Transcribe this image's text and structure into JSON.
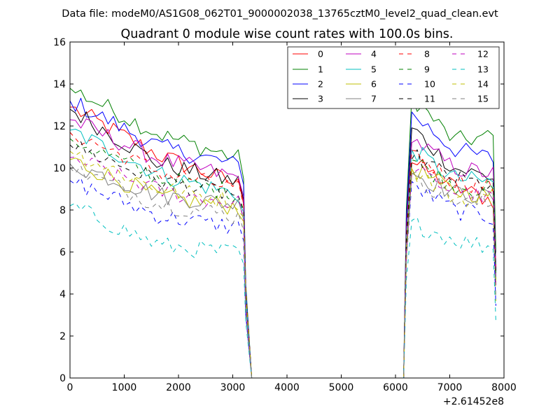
{
  "figure": {
    "suptitle": "Data file: modeM0/AS1G08_062T01_9000002038_13765cztM0_level2_quad_clean.evt"
  },
  "chart_data": {
    "type": "line",
    "title": "Quadrant 0 module wise count rates with 100.0s bins.",
    "xlabel": "",
    "ylabel": "",
    "x_offset_label": "+2.61452e8",
    "xlim": [
      0,
      8000
    ],
    "ylim": [
      0,
      16
    ],
    "x_ticks": [
      "0",
      "1000",
      "2000",
      "3000",
      "4000",
      "5000",
      "6000",
      "7000",
      "8000"
    ],
    "y_ticks": [
      "0",
      "2",
      "4",
      "6",
      "8",
      "10",
      "12",
      "14",
      "16"
    ],
    "grid": false,
    "legend": {
      "position": "top-right",
      "columns": 4
    },
    "segments": [
      {
        "start": 0,
        "end": 3300,
        "step": 100
      },
      {
        "start": 6150,
        "end": 7850,
        "step": 100
      }
    ],
    "gap_level": 0,
    "series": [
      {
        "name": "0",
        "color": "#ff0000",
        "style": "solid",
        "seg1": [
          12.9,
          10.6,
          9.0
        ],
        "seg2": [
          10.3,
          9.1,
          8.4
        ]
      },
      {
        "name": "1",
        "color": "#008000",
        "style": "solid",
        "seg1": [
          13.8,
          11.6,
          10.3
        ],
        "seg2": [
          13.4,
          11.3,
          11.5
        ]
      },
      {
        "name": "2",
        "color": "#0000ff",
        "style": "solid",
        "seg1": [
          13.2,
          11.0,
          10.0
        ],
        "seg2": [
          12.6,
          10.9,
          10.4
        ]
      },
      {
        "name": "3",
        "color": "#000000",
        "style": "solid",
        "seg1": [
          12.8,
          10.2,
          9.2
        ],
        "seg2": [
          11.9,
          10.0,
          9.5
        ]
      },
      {
        "name": "4",
        "color": "#bf00bf",
        "style": "solid",
        "seg1": [
          12.3,
          10.4,
          9.4
        ],
        "seg2": [
          11.4,
          10.0,
          9.7
        ]
      },
      {
        "name": "5",
        "color": "#00bfbf",
        "style": "solid",
        "seg1": [
          11.8,
          9.7,
          8.6
        ],
        "seg2": [
          10.9,
          9.5,
          9.3
        ]
      },
      {
        "name": "6",
        "color": "#bfbf00",
        "style": "solid",
        "seg1": [
          10.4,
          8.6,
          8.1
        ],
        "seg2": [
          10.0,
          8.9,
          8.7
        ]
      },
      {
        "name": "7",
        "color": "#808080",
        "style": "solid",
        "seg1": [
          10.2,
          8.7,
          8.2
        ],
        "seg2": [
          9.8,
          8.8,
          8.6
        ]
      },
      {
        "name": "8",
        "color": "#ff0000",
        "style": "dashed",
        "seg1": [
          11.7,
          9.8,
          8.9
        ],
        "seg2": [
          10.8,
          9.4,
          9.1
        ]
      },
      {
        "name": "9",
        "color": "#008000",
        "style": "dashed",
        "seg1": [
          11.4,
          9.5,
          8.7
        ],
        "seg2": [
          10.4,
          9.2,
          8.9
        ]
      },
      {
        "name": "10",
        "color": "#0000ff",
        "style": "dashed",
        "seg1": [
          9.4,
          7.7,
          7.1
        ],
        "seg2": [
          9.2,
          8.0,
          7.6
        ]
      },
      {
        "name": "11",
        "color": "#000000",
        "style": "dashed",
        "seg1": [
          11.1,
          9.4,
          8.6
        ],
        "seg2": [
          10.6,
          9.5,
          9.1
        ]
      },
      {
        "name": "12",
        "color": "#bf00bf",
        "style": "dashed",
        "seg1": [
          10.5,
          8.9,
          8.2
        ],
        "seg2": [
          9.9,
          8.9,
          8.5
        ]
      },
      {
        "name": "13",
        "color": "#00bfbf",
        "style": "dashed",
        "seg1": [
          8.2,
          6.3,
          5.9
        ],
        "seg2": [
          7.4,
          6.6,
          6.2
        ]
      },
      {
        "name": "14",
        "color": "#bfbf00",
        "style": "dashed",
        "seg1": [
          10.8,
          9.0,
          8.3
        ],
        "seg2": [
          9.9,
          8.6,
          8.4
        ]
      },
      {
        "name": "15",
        "color": "#808080",
        "style": "dashed",
        "seg1": [
          10.0,
          8.3,
          7.6
        ],
        "seg2": [
          9.6,
          8.5,
          8.2
        ]
      }
    ]
  }
}
